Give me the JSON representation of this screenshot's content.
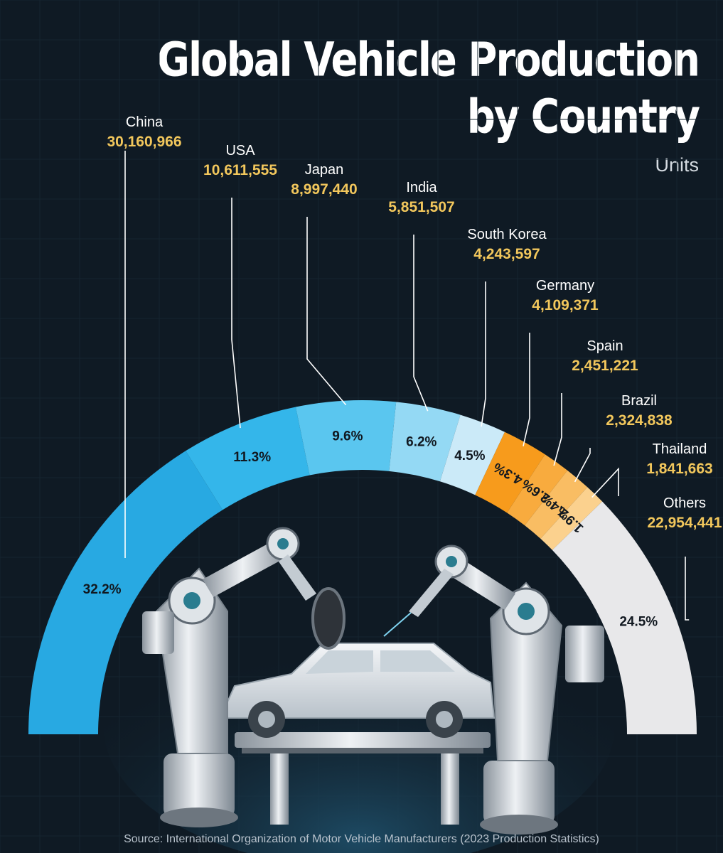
{
  "title_line1": "Global Vehicle Production",
  "title_line2": "by Country",
  "subtitle": "Units",
  "source": "Source: International Organization of Motor Vehicle Manufacturers (2023 Production Statistics)",
  "colors": {
    "background": "#0f1a24",
    "value_label": "#f2c75c",
    "country_label": "#ffffff",
    "leader_line": "#ffffff"
  },
  "chart_data": {
    "type": "pie",
    "variant": "half-donut",
    "title": "Global Vehicle Production by Country",
    "unit": "Units",
    "slices": [
      {
        "label": "China",
        "value": 30160966,
        "percent": "32.2%",
        "color": "#28a9e2"
      },
      {
        "label": "USA",
        "value": 10611555,
        "percent": "11.3%",
        "color": "#34b6ea"
      },
      {
        "label": "Japan",
        "value": 8997440,
        "percent": "9.6%",
        "color": "#5ac6ef"
      },
      {
        "label": "India",
        "value": 5851507,
        "percent": "6.2%",
        "color": "#94d9f4"
      },
      {
        "label": "South Korea",
        "value": 4243597,
        "percent": "4.5%",
        "color": "#cbeaf8"
      },
      {
        "label": "Germany",
        "value": 4109371,
        "percent": "4.3%",
        "color": "#f79b1c"
      },
      {
        "label": "Spain",
        "value": 2451221,
        "percent": "2.6%",
        "color": "#f8ab3e"
      },
      {
        "label": "Brazil",
        "value": 2324838,
        "percent": "2.4%",
        "color": "#f9bd63"
      },
      {
        "label": "Thailand",
        "value": 1841663,
        "percent": "1.9%",
        "color": "#fbd18e"
      },
      {
        "label": "Others",
        "value": 22954441,
        "percent": "24.5%",
        "color": "#e8e8ea"
      }
    ]
  }
}
